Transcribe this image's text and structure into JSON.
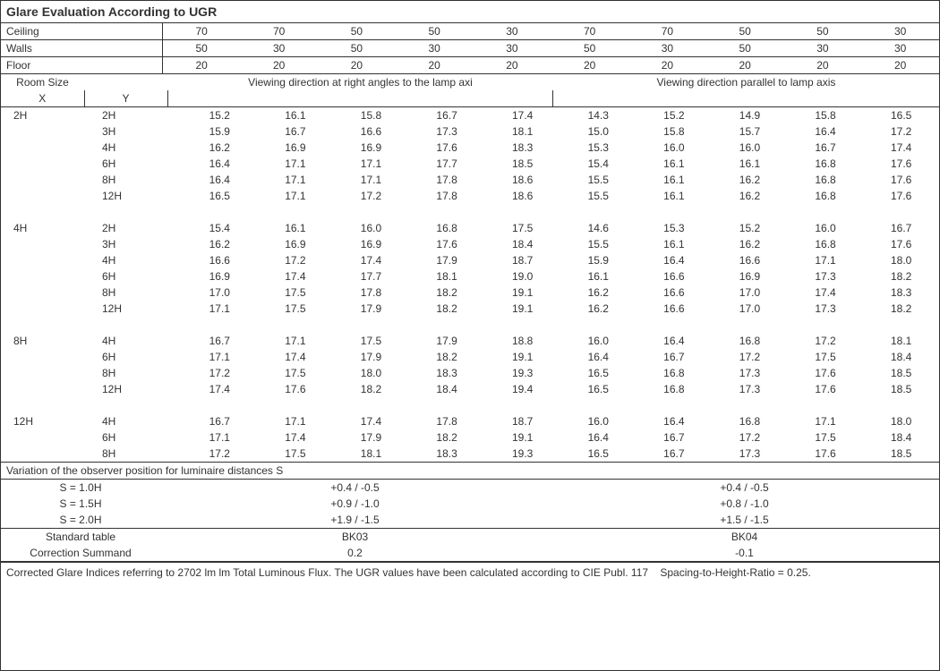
{
  "title": "Glare Evaluation According to UGR",
  "reflectance_rows": [
    {
      "label": "Ceiling",
      "vals": [
        "70",
        "70",
        "50",
        "50",
        "30",
        "70",
        "70",
        "50",
        "50",
        "30"
      ]
    },
    {
      "label": "Walls",
      "vals": [
        "50",
        "30",
        "50",
        "30",
        "30",
        "50",
        "30",
        "50",
        "30",
        "30"
      ]
    },
    {
      "label": "Floor",
      "vals": [
        "20",
        "20",
        "20",
        "20",
        "20",
        "20",
        "20",
        "20",
        "20",
        "20"
      ]
    }
  ],
  "room_size_label": "Room Size",
  "xy_labels": [
    "X",
    "Y"
  ],
  "section_headers": [
    "Viewing direction at right angles to the lamp axi",
    "Viewing direction parallel to lamp axis"
  ],
  "groups": [
    {
      "x": "2H",
      "rows": [
        {
          "y": "2H",
          "vals": [
            "15.2",
            "16.1",
            "15.8",
            "16.7",
            "17.4",
            "14.3",
            "15.2",
            "14.9",
            "15.8",
            "16.5"
          ]
        },
        {
          "y": "3H",
          "vals": [
            "15.9",
            "16.7",
            "16.6",
            "17.3",
            "18.1",
            "15.0",
            "15.8",
            "15.7",
            "16.4",
            "17.2"
          ]
        },
        {
          "y": "4H",
          "vals": [
            "16.2",
            "16.9",
            "16.9",
            "17.6",
            "18.3",
            "15.3",
            "16.0",
            "16.0",
            "16.7",
            "17.4"
          ]
        },
        {
          "y": "6H",
          "vals": [
            "16.4",
            "17.1",
            "17.1",
            "17.7",
            "18.5",
            "15.4",
            "16.1",
            "16.1",
            "16.8",
            "17.6"
          ]
        },
        {
          "y": "8H",
          "vals": [
            "16.4",
            "17.1",
            "17.1",
            "17.8",
            "18.6",
            "15.5",
            "16.1",
            "16.2",
            "16.8",
            "17.6"
          ]
        },
        {
          "y": "12H",
          "vals": [
            "16.5",
            "17.1",
            "17.2",
            "17.8",
            "18.6",
            "15.5",
            "16.1",
            "16.2",
            "16.8",
            "17.6"
          ]
        }
      ]
    },
    {
      "x": "4H",
      "rows": [
        {
          "y": "2H",
          "vals": [
            "15.4",
            "16.1",
            "16.0",
            "16.8",
            "17.5",
            "14.6",
            "15.3",
            "15.2",
            "16.0",
            "16.7"
          ]
        },
        {
          "y": "3H",
          "vals": [
            "16.2",
            "16.9",
            "16.9",
            "17.6",
            "18.4",
            "15.5",
            "16.1",
            "16.2",
            "16.8",
            "17.6"
          ]
        },
        {
          "y": "4H",
          "vals": [
            "16.6",
            "17.2",
            "17.4",
            "17.9",
            "18.7",
            "15.9",
            "16.4",
            "16.6",
            "17.1",
            "18.0"
          ]
        },
        {
          "y": "6H",
          "vals": [
            "16.9",
            "17.4",
            "17.7",
            "18.1",
            "19.0",
            "16.1",
            "16.6",
            "16.9",
            "17.3",
            "18.2"
          ]
        },
        {
          "y": "8H",
          "vals": [
            "17.0",
            "17.5",
            "17.8",
            "18.2",
            "19.1",
            "16.2",
            "16.6",
            "17.0",
            "17.4",
            "18.3"
          ]
        },
        {
          "y": "12H",
          "vals": [
            "17.1",
            "17.5",
            "17.9",
            "18.2",
            "19.1",
            "16.2",
            "16.6",
            "17.0",
            "17.3",
            "18.2"
          ]
        }
      ]
    },
    {
      "x": "8H",
      "rows": [
        {
          "y": "4H",
          "vals": [
            "16.7",
            "17.1",
            "17.5",
            "17.9",
            "18.8",
            "16.0",
            "16.4",
            "16.8",
            "17.2",
            "18.1"
          ]
        },
        {
          "y": "6H",
          "vals": [
            "17.1",
            "17.4",
            "17.9",
            "18.2",
            "19.1",
            "16.4",
            "16.7",
            "17.2",
            "17.5",
            "18.4"
          ]
        },
        {
          "y": "8H",
          "vals": [
            "17.2",
            "17.5",
            "18.0",
            "18.3",
            "19.3",
            "16.5",
            "16.8",
            "17.3",
            "17.6",
            "18.5"
          ]
        },
        {
          "y": "12H",
          "vals": [
            "17.4",
            "17.6",
            "18.2",
            "18.4",
            "19.4",
            "16.5",
            "16.8",
            "17.3",
            "17.6",
            "18.5"
          ]
        }
      ]
    },
    {
      "x": "12H",
      "rows": [
        {
          "y": "4H",
          "vals": [
            "16.7",
            "17.1",
            "17.4",
            "17.8",
            "18.7",
            "16.0",
            "16.4",
            "16.8",
            "17.1",
            "18.0"
          ]
        },
        {
          "y": "6H",
          "vals": [
            "17.1",
            "17.4",
            "17.9",
            "18.2",
            "19.1",
            "16.4",
            "16.7",
            "17.2",
            "17.5",
            "18.4"
          ]
        },
        {
          "y": "8H",
          "vals": [
            "17.2",
            "17.5",
            "18.1",
            "18.3",
            "19.3",
            "16.5",
            "16.7",
            "17.3",
            "17.6",
            "18.5"
          ]
        }
      ]
    }
  ],
  "variation_title": "Variation of the observer position for luminaire distances S",
  "variation_rows": [
    {
      "label": "S = 1.0H",
      "left": "+0.4 / -0.5",
      "right": "+0.4 / -0.5"
    },
    {
      "label": "S = 1.5H",
      "left": "+0.9 / -1.0",
      "right": "+0.8 / -1.0"
    },
    {
      "label": "S = 2.0H",
      "left": "+1.9 / -1.5",
      "right": "+1.5 / -1.5"
    }
  ],
  "standard_table_label": "Standard table",
  "standard_table": [
    "BK03",
    "BK04"
  ],
  "correction_label": "Correction Summand",
  "correction": [
    "0.2",
    "-0.1"
  ],
  "footer": "Corrected Glare Indices referring to 2702 lm lm Total Luminous Flux. The UGR values have been calculated according to CIE Publ. 117    Spacing-to-Height-Ratio = 0.25."
}
